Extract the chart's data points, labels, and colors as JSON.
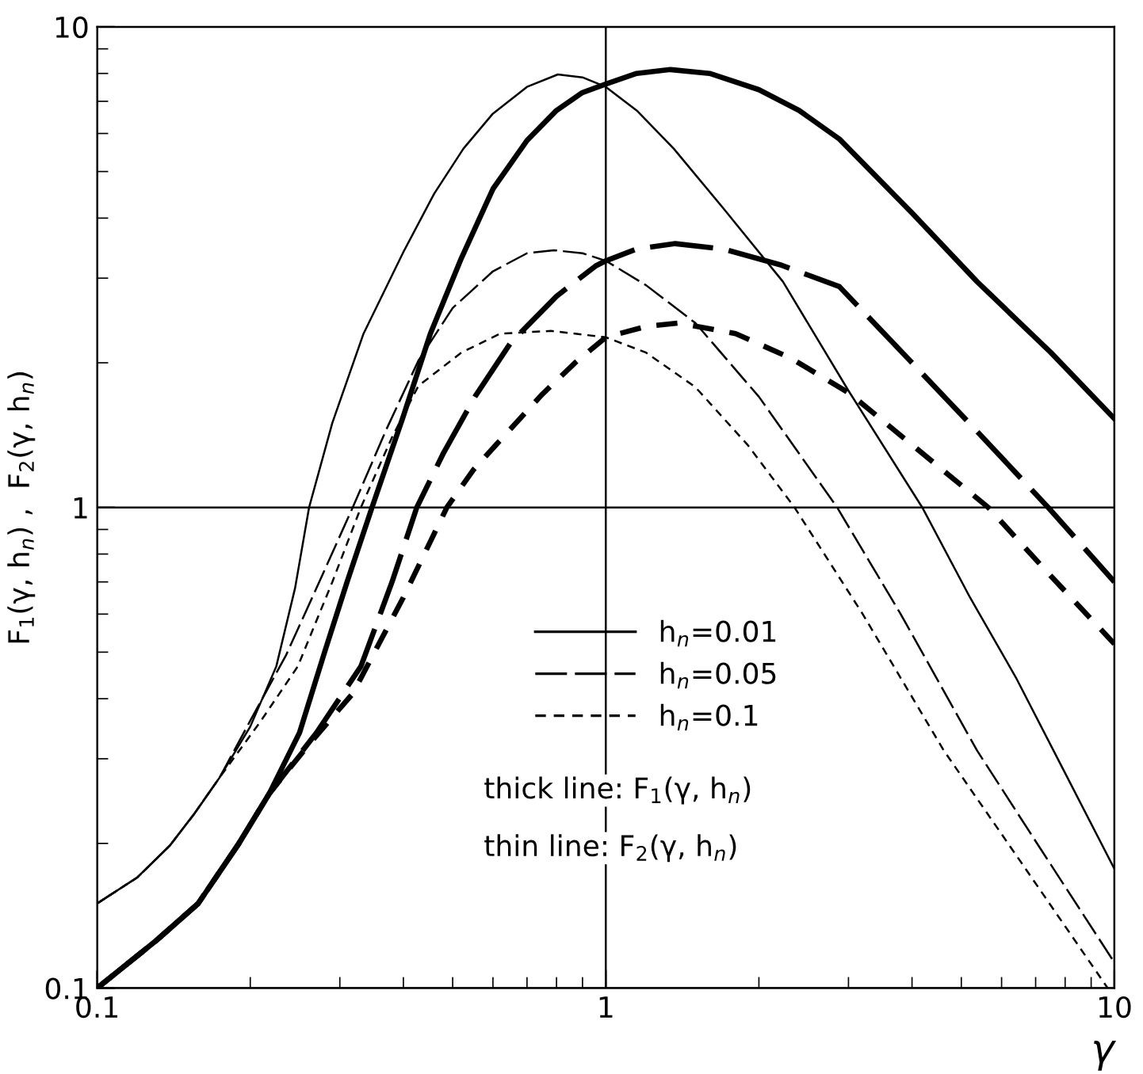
{
  "chart_data": {
    "type": "line",
    "xlabel": "γ",
    "ylabel": "F$_{1}$(γ, h$_{n}$) ,  F$_{2}$(γ, h$_{n}$)",
    "log": "xy",
    "xlim": [
      0.1,
      10
    ],
    "ylim": [
      0.1,
      10
    ],
    "xticks": [
      0.1,
      1,
      10
    ],
    "yticks": [
      0.1,
      1,
      10
    ],
    "grid": true,
    "legend": "bottom",
    "marker": "none",
    "series": [
      {
        "name": "h$_{n}$=0.01",
        "line_style": "solid",
        "color": "#000000",
        "x": [
          0.1,
          0.13,
          0.158,
          0.19,
          0.218,
          0.25,
          0.28,
          0.31,
          0.347,
          0.4,
          0.452,
          0.52,
          0.6,
          0.7,
          0.8,
          0.9,
          1.0,
          1.15,
          1.34,
          1.6,
          2.0,
          2.4,
          2.88,
          4.0,
          5.37,
          7.5,
          10
        ],
        "values": [
          0.1,
          0.125,
          0.15,
          0.2,
          0.254,
          0.34,
          0.5,
          0.7,
          1.0,
          1.55,
          2.3,
          3.3,
          4.6,
          5.8,
          6.7,
          7.3,
          7.6,
          8.0,
          8.15,
          8.0,
          7.4,
          6.7,
          5.84,
          4.1,
          2.95,
          2.1,
          1.53
        ]
      },
      {
        "line_style": "solid",
        "color": "#000000",
        "x": [
          0.1,
          0.12,
          0.139,
          0.155,
          0.174,
          0.2,
          0.225,
          0.245,
          0.261,
          0.29,
          0.334,
          0.4,
          0.46,
          0.525,
          0.6,
          0.7,
          0.805,
          0.9,
          1.0,
          1.15,
          1.36,
          1.7,
          2.23,
          3.0,
          4.19,
          5.2,
          6.4,
          8,
          10
        ],
        "values": [
          0.15,
          0.17,
          0.198,
          0.23,
          0.274,
          0.35,
          0.467,
          0.68,
          1.0,
          1.5,
          2.3,
          3.4,
          4.5,
          5.58,
          6.6,
          7.5,
          7.96,
          7.85,
          7.5,
          6.7,
          5.58,
          4.2,
          2.95,
          1.75,
          1.0,
          0.65,
          0.443,
          0.28,
          0.177
        ]
      },
      {
        "name": "h$_{n}$=0.05",
        "line_style": "longdash",
        "color": "#000000",
        "x": [
          0.1,
          0.13,
          0.158,
          0.19,
          0.218,
          0.27,
          0.33,
          0.38,
          0.425,
          0.48,
          0.553,
          0.65,
          0.8,
          0.955,
          1.0,
          1.15,
          1.37,
          1.7,
          2.2,
          2.88,
          4.0,
          5.37,
          7.41,
          10
        ],
        "values": [
          0.1,
          0.125,
          0.15,
          0.2,
          0.254,
          0.34,
          0.467,
          0.7,
          1.0,
          1.3,
          1.7,
          2.2,
          2.75,
          3.18,
          3.26,
          3.45,
          3.54,
          3.45,
          3.2,
          2.88,
          2.0,
          1.44,
          1.0,
          0.7
        ]
      },
      {
        "line_style": "longdash",
        "color": "#000000",
        "x": [
          0.1,
          0.12,
          0.139,
          0.155,
          0.174,
          0.2,
          0.235,
          0.27,
          0.318,
          0.37,
          0.428,
          0.5,
          0.6,
          0.7,
          0.79,
          0.9,
          1.0,
          1.2,
          1.5,
          2.0,
          2.85,
          3.8,
          5.37,
          7.2,
          10
        ],
        "values": [
          0.15,
          0.17,
          0.198,
          0.23,
          0.274,
          0.36,
          0.492,
          0.68,
          1.0,
          1.45,
          2.02,
          2.6,
          3.1,
          3.38,
          3.43,
          3.38,
          3.26,
          2.9,
          2.42,
          1.7,
          1.0,
          0.6,
          0.312,
          0.193,
          0.113
        ]
      },
      {
        "name": "h$_{n}$=0.1",
        "line_style": "dashed",
        "color": "#000000",
        "x": [
          0.1,
          0.13,
          0.158,
          0.19,
          0.218,
          0.26,
          0.318,
          0.4,
          0.487,
          0.55,
          0.62,
          0.75,
          0.87,
          1.0,
          1.2,
          1.39,
          1.8,
          2.3,
          3.01,
          4.0,
          5.65,
          7.5,
          10
        ],
        "values": [
          0.1,
          0.125,
          0.15,
          0.2,
          0.254,
          0.32,
          0.41,
          0.65,
          1.0,
          1.2,
          1.38,
          1.72,
          2.0,
          2.26,
          2.38,
          2.42,
          2.3,
          2.05,
          1.73,
          1.35,
          1.0,
          0.72,
          0.52
        ]
      },
      {
        "line_style": "dashed",
        "color": "#000000",
        "x": [
          0.1,
          0.12,
          0.139,
          0.155,
          0.174,
          0.21,
          0.248,
          0.29,
          0.33,
          0.38,
          0.428,
          0.52,
          0.62,
          0.78,
          1.0,
          1.2,
          1.5,
          1.9,
          2.35,
          3.2,
          4.62,
          6.5,
          9.7
        ],
        "values": [
          0.15,
          0.17,
          0.198,
          0.23,
          0.274,
          0.36,
          0.467,
          0.7,
          1.0,
          1.4,
          1.79,
          2.1,
          2.3,
          2.33,
          2.26,
          2.1,
          1.78,
          1.35,
          1.0,
          0.6,
          0.312,
          0.185,
          0.1
        ]
      }
    ],
    "annotations": [
      "thick line: F$_{1}$(γ, h$_{n}$)",
      "thin line: F$_{2}$(γ, h$_{n}$)"
    ]
  }
}
